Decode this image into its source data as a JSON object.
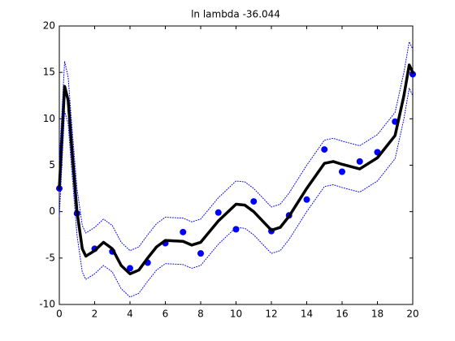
{
  "chart_data": {
    "type": "line",
    "title": "ln lambda -36.044",
    "xlim": [
      0,
      20
    ],
    "xticks": [
      0,
      2,
      4,
      6,
      8,
      10,
      12,
      14,
      16,
      18,
      20
    ],
    "ylim": [
      -10,
      20
    ],
    "yticks": [
      -10,
      -5,
      0,
      5,
      10,
      15,
      20
    ],
    "series": [
      {
        "color": "#0000ff",
        "style": "markers",
        "x": [
          0,
          1,
          2,
          3,
          4,
          5,
          6,
          7,
          8,
          9,
          10,
          11,
          12,
          13,
          14,
          15,
          16,
          17,
          18,
          19,
          20
        ],
        "values": [
          2.5,
          -0.2,
          -4.0,
          -4.3,
          -6.1,
          -5.5,
          -3.4,
          -2.2,
          -4.5,
          -0.1,
          -1.9,
          1.1,
          -2.1,
          -0.4,
          1.3,
          6.7,
          4.3,
          5.4,
          6.4,
          9.7,
          14.8
        ]
      },
      {
        "color": "#000000",
        "style": "thick",
        "x": [
          0,
          0.3,
          0.5,
          0.7,
          1,
          1.3,
          1.5,
          2,
          2.5,
          3,
          3.5,
          4,
          4.5,
          5,
          5.5,
          6,
          7,
          7.5,
          8,
          9,
          10,
          10.5,
          11,
          12,
          12.5,
          13,
          14,
          15,
          15.5,
          16,
          17,
          18,
          19,
          19.5,
          19.8,
          20
        ],
        "values": [
          2.5,
          13.5,
          12,
          7,
          0,
          -4,
          -4.8,
          -4.2,
          -3.3,
          -4,
          -5.8,
          -6.7,
          -6.3,
          -5,
          -3.8,
          -3.1,
          -3.2,
          -3.6,
          -3.3,
          -1,
          0.8,
          0.7,
          0,
          -2,
          -1.7,
          -0.5,
          2.5,
          5.2,
          5.4,
          5.1,
          4.6,
          5.8,
          8.2,
          12.5,
          15.8,
          15
        ]
      },
      {
        "color": "#0000ff",
        "style": "dotted",
        "x": [
          0,
          0.3,
          0.5,
          0.7,
          1,
          1.3,
          1.5,
          2,
          2.5,
          3,
          3.5,
          4,
          4.5,
          5,
          5.5,
          6,
          7,
          7.5,
          8,
          9,
          10,
          10.5,
          11,
          12,
          12.5,
          13,
          14,
          15,
          15.5,
          16,
          17,
          18,
          19,
          19.5,
          19.8,
          20
        ],
        "values": [
          5.5,
          16.2,
          14.5,
          9.5,
          2.5,
          -1.5,
          -2.3,
          -1.7,
          -0.8,
          -1.5,
          -3.3,
          -4.2,
          -3.8,
          -2.5,
          -1.3,
          -0.6,
          -0.7,
          -1.1,
          -0.8,
          1.5,
          3.3,
          3.2,
          2.5,
          0.5,
          0.8,
          2,
          5,
          7.7,
          7.9,
          7.6,
          7.1,
          8.3,
          10.7,
          15,
          18.3,
          17.5
        ]
      },
      {
        "color": "#0000ff",
        "style": "dotted",
        "x": [
          0,
          0.3,
          0.5,
          0.7,
          1,
          1.3,
          1.5,
          2,
          2.5,
          3,
          3.5,
          4,
          4.5,
          5,
          5.5,
          6,
          7,
          7.5,
          8,
          9,
          10,
          10.5,
          11,
          12,
          12.5,
          13,
          14,
          15,
          15.5,
          16,
          17,
          18,
          19,
          19.5,
          19.8,
          20
        ],
        "values": [
          -0.5,
          10.8,
          9.5,
          4.5,
          -2.5,
          -6.5,
          -7.3,
          -6.7,
          -5.8,
          -6.5,
          -8.3,
          -9.2,
          -8.8,
          -7.5,
          -6.3,
          -5.6,
          -5.7,
          -6.1,
          -5.8,
          -3.5,
          -1.7,
          -1.8,
          -2.5,
          -4.5,
          -4.2,
          -3,
          0,
          2.7,
          2.9,
          2.6,
          2.1,
          3.3,
          5.7,
          10,
          13.3,
          12.5
        ]
      }
    ]
  }
}
